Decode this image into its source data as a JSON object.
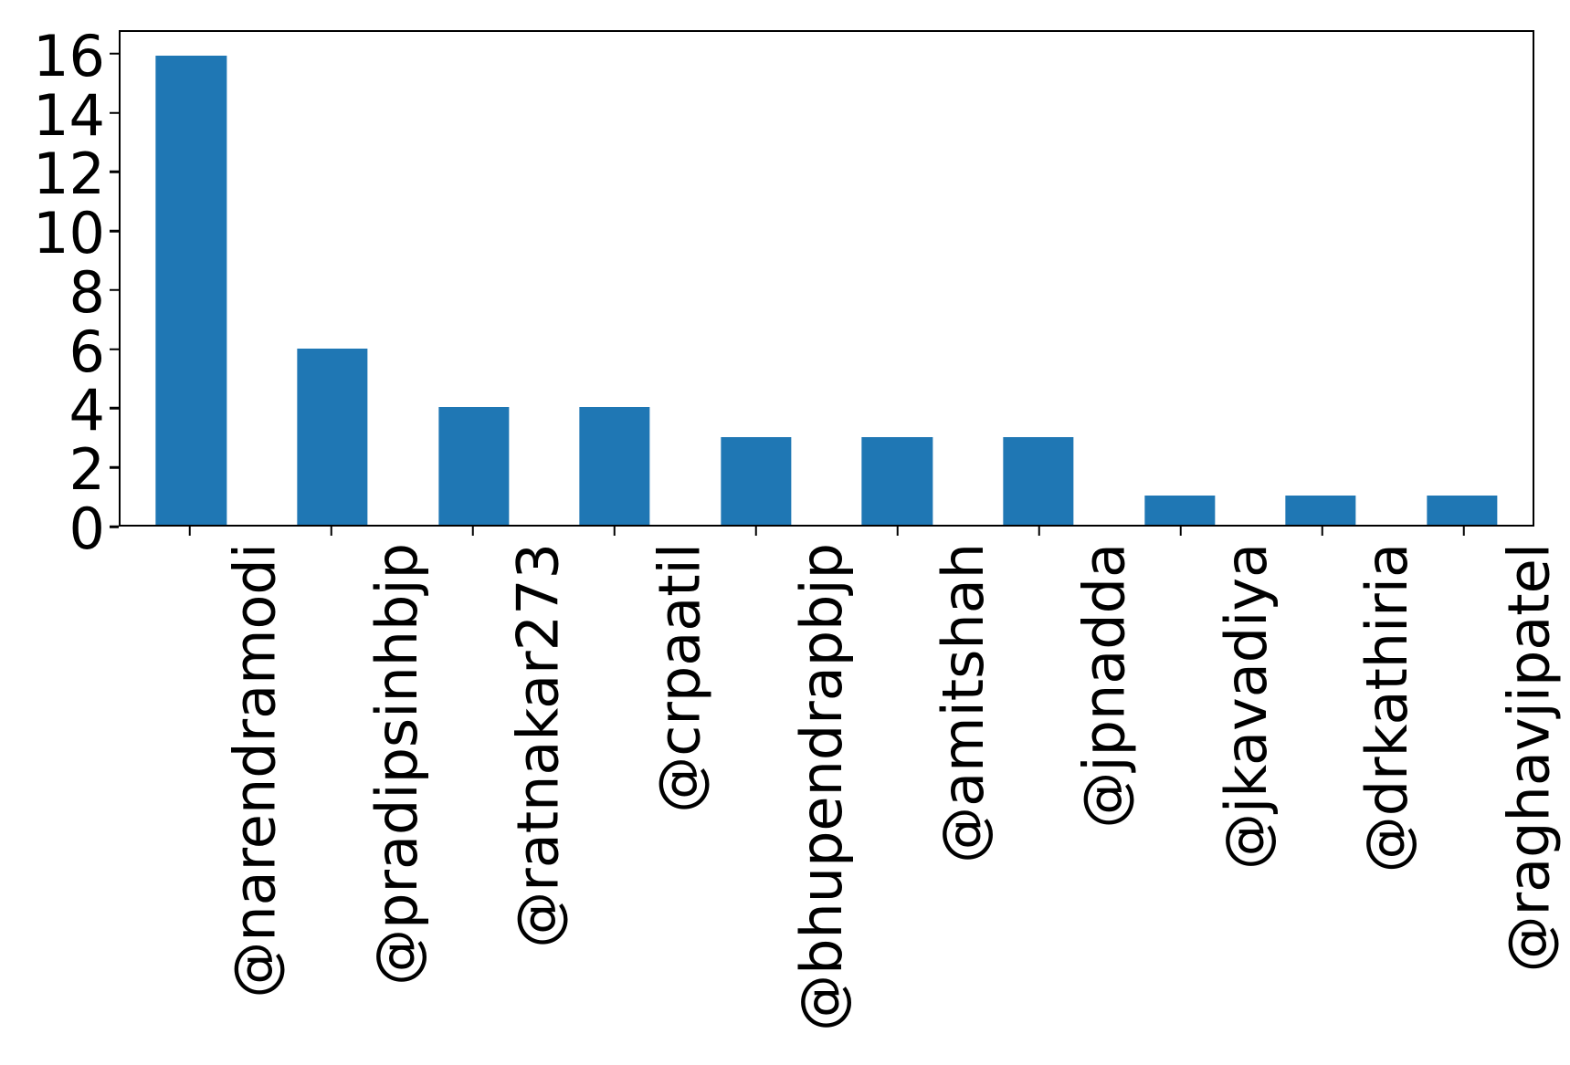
{
  "chart_data": {
    "type": "bar",
    "categories": [
      "@narendramodi",
      "@pradipsinhbjp",
      "@ratnakar273",
      "@crpaatil",
      "@bhupendrapbjp",
      "@amitshah",
      "@jpnadda",
      "@jkavadiya",
      "@drkathiria",
      "@raghavjipatel"
    ],
    "values": [
      16,
      6,
      4,
      4,
      3,
      3,
      3,
      1,
      1,
      1
    ],
    "title": "",
    "subtitle": "",
    "xlabel": "",
    "ylabel": "",
    "ylim": [
      0,
      16.8
    ],
    "yticks": [
      0,
      2,
      4,
      6,
      8,
      10,
      12,
      14,
      16
    ],
    "xtick_rotation_degrees": 90,
    "grid": false,
    "legend": false,
    "bar_color": "#1f77b4",
    "axis_color": "#000000",
    "background_color": "#ffffff"
  }
}
